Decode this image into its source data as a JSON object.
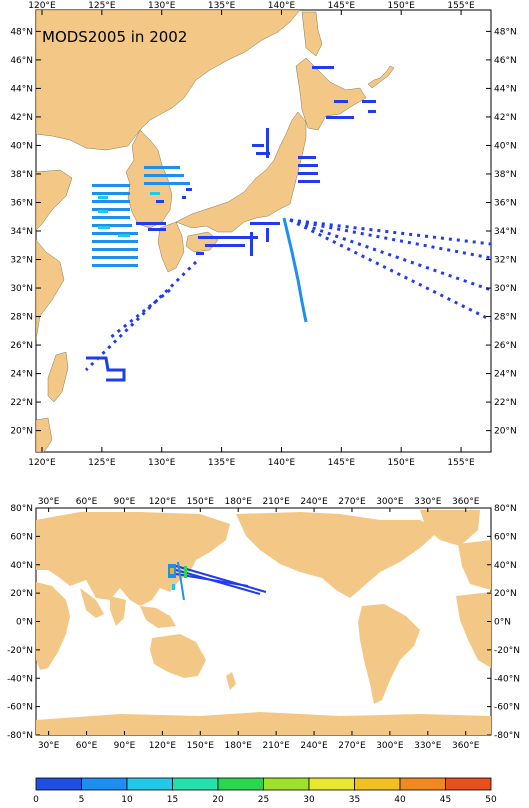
{
  "top_map": {
    "title": "MODS2005 in 2002",
    "lon_labels": [
      "120°E",
      "125°E",
      "130°E",
      "135°E",
      "140°E",
      "145°E",
      "150°E",
      "155°E"
    ],
    "lat_labels": [
      "48°N",
      "46°N",
      "44°N",
      "42°N",
      "40°N",
      "38°N",
      "36°N",
      "34°N",
      "32°N",
      "30°N",
      "28°N",
      "26°N",
      "24°N",
      "22°N",
      "20°N"
    ],
    "lon_range": [
      119.5,
      157.5
    ],
    "lat_range": [
      18.5,
      49.5
    ]
  },
  "bottom_map": {
    "lon_labels": [
      "30°E",
      "60°E",
      "90°E",
      "120°E",
      "150°E",
      "180°E",
      "210°E",
      "240°E",
      "270°E",
      "300°E",
      "330°E",
      "360°E"
    ],
    "lat_labels": [
      "80°N",
      "60°N",
      "40°N",
      "20°N",
      "0°N",
      "-20°N",
      "-40°N",
      "-60°N",
      "-80°N"
    ],
    "lon_range": [
      20,
      380
    ],
    "lat_range": [
      -80,
      80
    ]
  },
  "colorbar": {
    "labels": [
      "0",
      "5",
      "10",
      "15",
      "20",
      "25",
      "30",
      "35",
      "40",
      "45",
      "50"
    ],
    "colors": [
      "#1f4fe0",
      "#1c8ff0",
      "#22c8e8",
      "#25e0a8",
      "#2ad850",
      "#9ee02a",
      "#e8e830",
      "#f2c020",
      "#f08a20",
      "#e85020"
    ]
  },
  "colors": {
    "land": "#f3c886",
    "ocean": "#ffffff",
    "track_primary": "#1f3cf2",
    "track_secondary": "#1c8ff0",
    "track_cyan": "#22c8e8"
  }
}
